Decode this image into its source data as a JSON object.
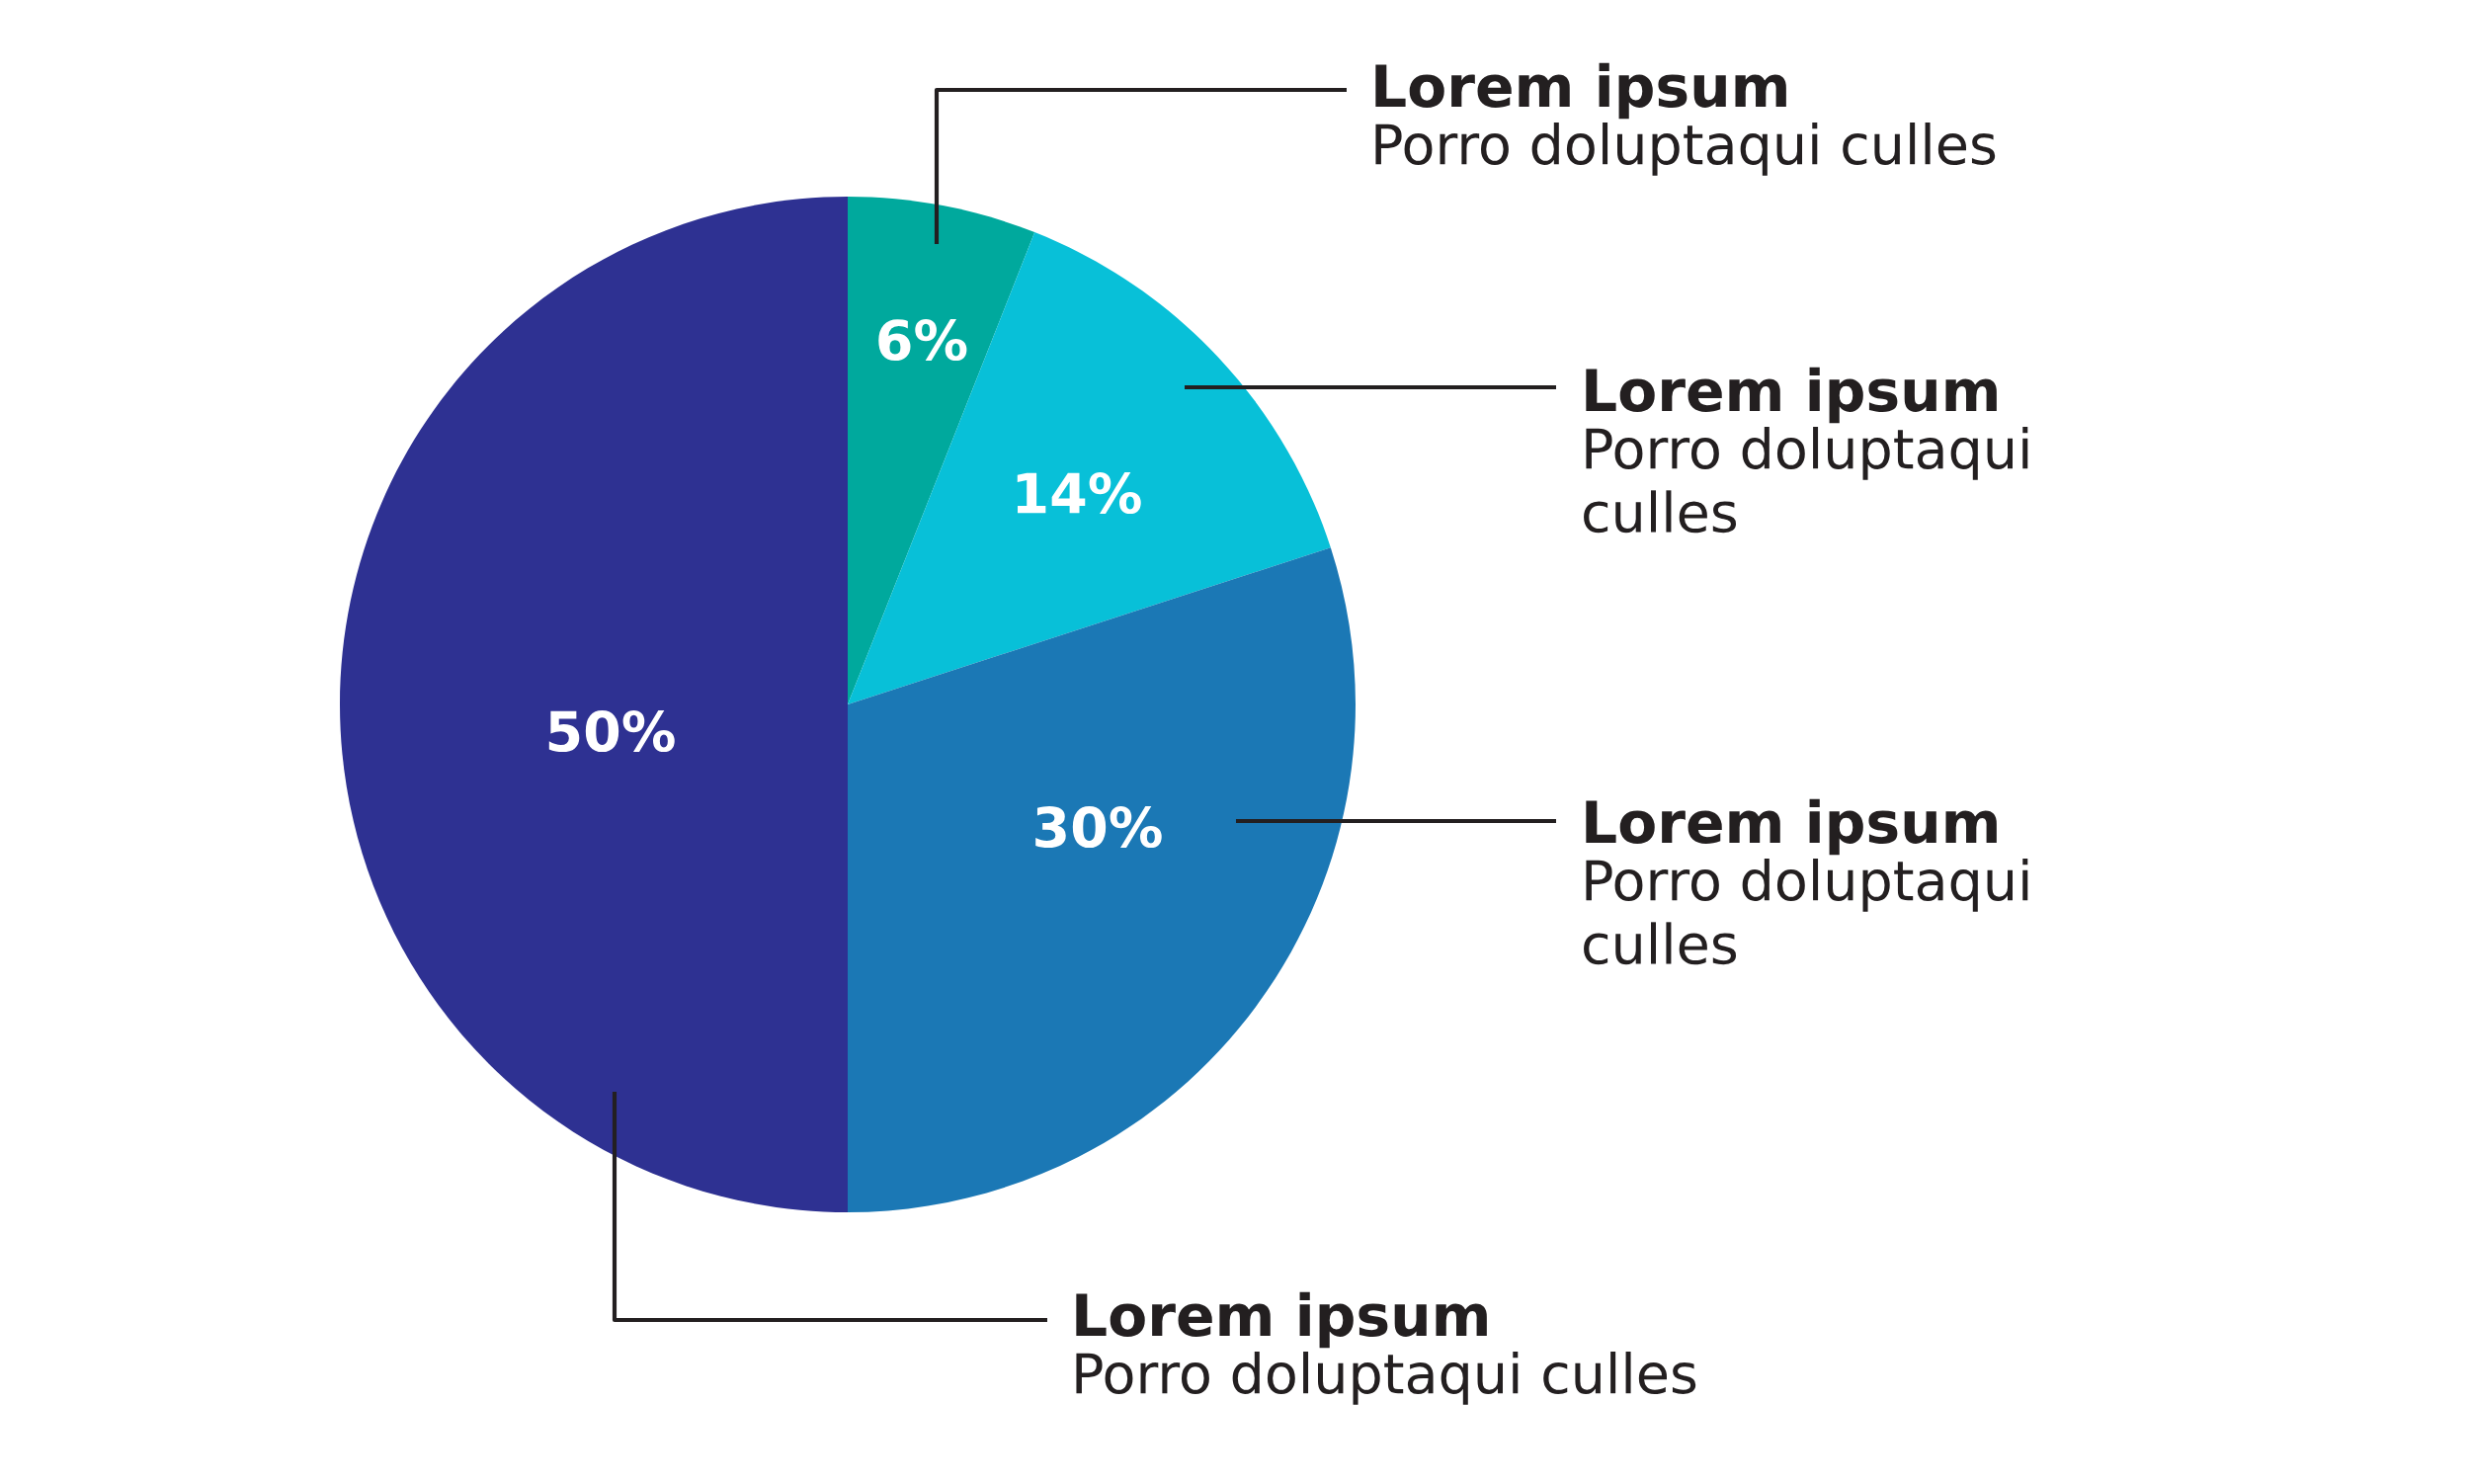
{
  "chart_data": {
    "type": "pie",
    "categories": [
      "Lorem ipsum\nPorro doluptaqui culles",
      "Lorem ipsum\nPorro doluptaqui\nculles",
      "Lorem ipsum\nPorro doluptaqui\nculles",
      "Lorem ipsum\nPorro doluptaqui culles"
    ],
    "values": [
      6,
      14,
      30,
      50
    ],
    "value_labels": [
      "6%",
      "14%",
      "30%",
      "50%"
    ],
    "colors": [
      "#00a99d",
      "#08c0d8",
      "#1b78b5",
      "#2e3192"
    ]
  }
}
